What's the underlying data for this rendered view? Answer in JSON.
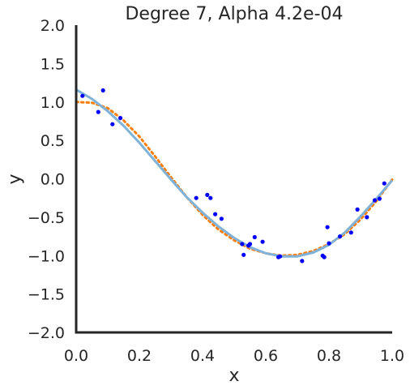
{
  "chart_data": {
    "type": "scatter",
    "title": "Degree 7, Alpha 4.2e-04",
    "xlabel": "x",
    "ylabel": "y",
    "xlim": [
      0.0,
      1.0
    ],
    "ylim": [
      -2.0,
      2.0
    ],
    "xticks": [
      "0.0",
      "0.2",
      "0.4",
      "0.6",
      "0.8",
      "1.0"
    ],
    "yticks": [
      "2.0",
      "1.5",
      "1.0",
      "0.5",
      "0.0",
      "−0.5",
      "−1.0",
      "−1.5",
      "−2.0"
    ],
    "grid": false,
    "legend": "none",
    "colors": {
      "points": "#0000ff",
      "fit": "#7fb2d8",
      "truth": "#ff7f0e",
      "axis": "#262626"
    },
    "points": {
      "x": [
        0.02,
        0.07,
        0.085,
        0.115,
        0.14,
        0.38,
        0.415,
        0.425,
        0.44,
        0.46,
        0.525,
        0.53,
        0.545,
        0.55,
        0.565,
        0.59,
        0.64,
        0.645,
        0.715,
        0.78,
        0.785,
        0.795,
        0.8,
        0.835,
        0.87,
        0.89,
        0.92,
        0.945,
        0.96,
        0.975
      ],
      "y": [
        1.08,
        0.87,
        1.15,
        0.71,
        0.79,
        -0.25,
        -0.21,
        -0.25,
        -0.46,
        -0.52,
        -0.85,
        -0.99,
        -0.87,
        -0.85,
        -0.76,
        -0.82,
        -1.02,
        -1.01,
        -1.07,
        -1.0,
        -1.02,
        -0.63,
        -0.84,
        -0.75,
        -0.7,
        -0.4,
        -0.5,
        -0.28,
        -0.26,
        -0.06
      ]
    },
    "fit_line": {
      "x": [
        0.0,
        0.05,
        0.1,
        0.15,
        0.2,
        0.25,
        0.3,
        0.35,
        0.4,
        0.45,
        0.5,
        0.55,
        0.6,
        0.65,
        0.7,
        0.75,
        0.8,
        0.85,
        0.9,
        0.95,
        1.0
      ],
      "y": [
        1.16,
        1.04,
        0.88,
        0.69,
        0.47,
        0.23,
        -0.01,
        -0.24,
        -0.44,
        -0.62,
        -0.77,
        -0.89,
        -0.97,
        -1.01,
        -1.01,
        -0.96,
        -0.86,
        -0.7,
        -0.49,
        -0.26,
        -0.02
      ]
    },
    "true_line": {
      "x": [
        0.0,
        0.05,
        0.1,
        0.15,
        0.2,
        0.25,
        0.3,
        0.35,
        0.4,
        0.45,
        0.5,
        0.55,
        0.6,
        0.65,
        0.7,
        0.75,
        0.8,
        0.85,
        0.9,
        0.95,
        1.0
      ],
      "y": [
        1.0,
        0.99,
        0.92,
        0.76,
        0.55,
        0.29,
        0.02,
        -0.24,
        -0.47,
        -0.66,
        -0.8,
        -0.91,
        -0.97,
        -1.0,
        -0.99,
        -0.94,
        -0.85,
        -0.72,
        -0.53,
        -0.29,
        -0.01
      ]
    }
  }
}
